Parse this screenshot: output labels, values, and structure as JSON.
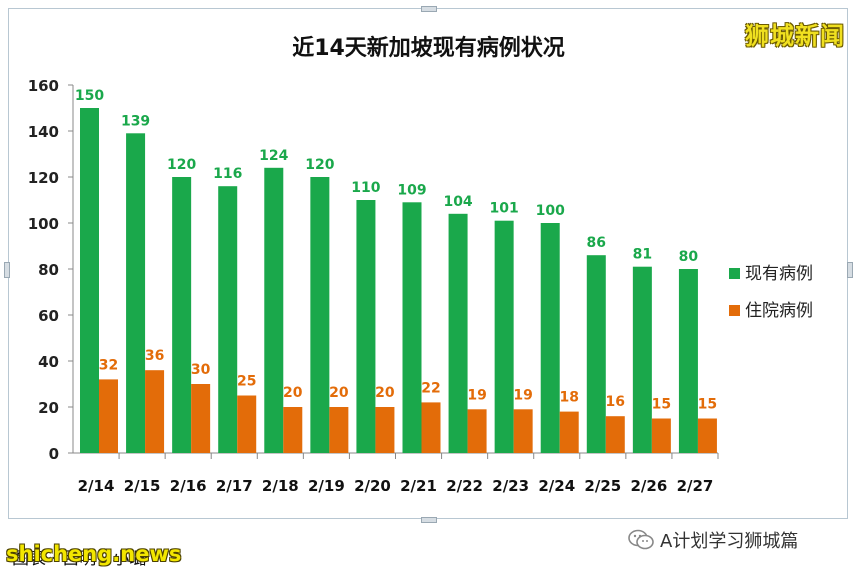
{
  "watermark_top": "狮城新闻",
  "caption": "图表 · 吕明 · 小璐",
  "watermark_bottom": "shicheng.news",
  "wechat_account": "A计划学习狮城篇",
  "colors": {
    "green": "#1aa84b",
    "orange": "#e36c09",
    "axis": "#888888"
  },
  "chart_data": {
    "type": "bar",
    "title": "近14天新加坡现有病例状况",
    "categories": [
      "2/14",
      "2/15",
      "2/16",
      "2/17",
      "2/18",
      "2/19",
      "2/20",
      "2/21",
      "2/22",
      "2/23",
      "2/24",
      "2/25",
      "2/26",
      "2/27"
    ],
    "series": [
      {
        "name": "现有病例",
        "color": "#1aa84b",
        "values": [
          150,
          139,
          120,
          116,
          124,
          120,
          110,
          109,
          104,
          101,
          100,
          86,
          81,
          80
        ]
      },
      {
        "name": "住院病例",
        "color": "#e36c09",
        "values": [
          32,
          36,
          30,
          25,
          20,
          20,
          20,
          22,
          19,
          19,
          18,
          16,
          15,
          15
        ]
      }
    ],
    "ylim": [
      0,
      160
    ],
    "yticks": [
      0,
      20,
      40,
      60,
      80,
      100,
      120,
      140,
      160
    ],
    "legend_position": "right",
    "grid": false,
    "xlabel": "",
    "ylabel": ""
  }
}
